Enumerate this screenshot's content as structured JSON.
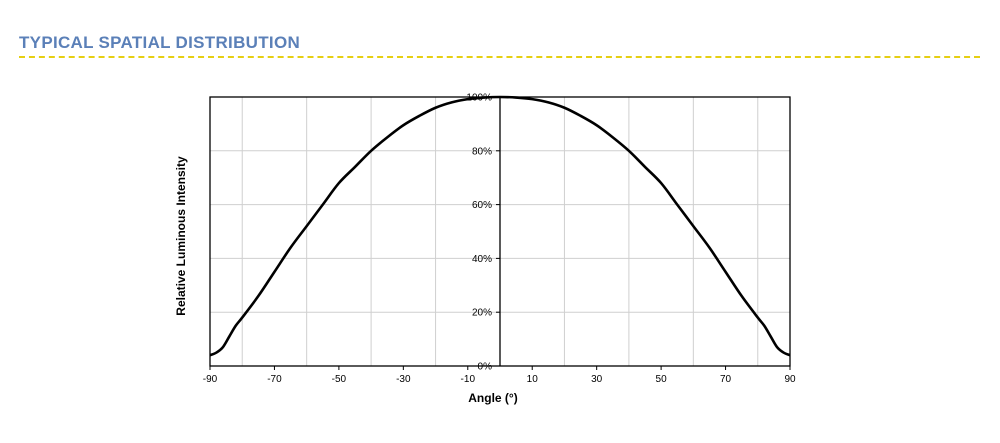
{
  "section": {
    "title": "TYPICAL SPATIAL DISTRIBUTION",
    "title_color": "#5b80b8",
    "divider_color": "#e6cf12"
  },
  "chart_data": {
    "type": "line",
    "xlabel": "Angle (°)",
    "ylabel": "Relative Luminous Intensity",
    "xlim": [
      -90,
      90
    ],
    "ylim": [
      0,
      100
    ],
    "x_ticks": [
      -90,
      -70,
      -50,
      -30,
      -10,
      10,
      30,
      50,
      70,
      90
    ],
    "y_ticks": [
      0,
      20,
      40,
      60,
      80,
      100
    ],
    "y_tick_labels": [
      "0%",
      "20%",
      "40%",
      "60%",
      "80%",
      "100%"
    ],
    "grid": true,
    "line_color": "#000000",
    "series": [
      {
        "x": [
          -90,
          -88,
          -86,
          -84,
          -82,
          -80,
          -75,
          -70,
          -65,
          -60,
          -55,
          -50,
          -45,
          -40,
          -35,
          -30,
          -25,
          -20,
          -15,
          -10,
          -5,
          0,
          5,
          10,
          15,
          20,
          25,
          30,
          35,
          40,
          45,
          50,
          55,
          60,
          65,
          70,
          75,
          80,
          82,
          84,
          86,
          88,
          90
        ],
        "values": [
          4,
          5,
          7,
          11,
          15,
          18,
          26,
          35,
          44,
          52,
          60,
          68,
          74,
          80,
          85,
          89.5,
          93,
          96,
          98,
          99.2,
          99.8,
          100,
          99.8,
          99.2,
          98,
          96,
          93,
          89.5,
          85,
          80,
          74,
          68,
          60,
          52,
          44,
          35,
          26,
          18,
          15,
          11,
          7,
          5,
          4
        ]
      }
    ]
  }
}
